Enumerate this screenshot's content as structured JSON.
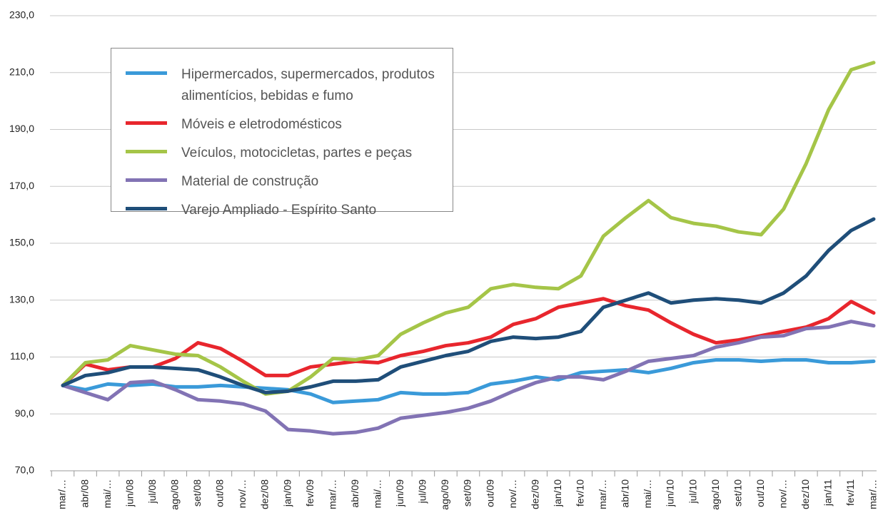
{
  "chart_data": {
    "type": "line",
    "categories": [
      "mar/…",
      "abr/08",
      "mai/…",
      "jun/08",
      "jul/08",
      "ago/08",
      "set/08",
      "out/08",
      "nov/…",
      "dez/08",
      "jan/09",
      "fev/09",
      "mar/…",
      "abr/09",
      "mai/…",
      "jun/09",
      "jul/09",
      "ago/09",
      "set/09",
      "out/09",
      "nov/…",
      "dez/09",
      "jan/10",
      "fev/10",
      "mar/…",
      "abr/10",
      "mai/…",
      "jun/10",
      "jul/10",
      "ago/10",
      "set/10",
      "out/10",
      "nov/…",
      "dez/10",
      "jan/11",
      "fev/11",
      "mar/…"
    ],
    "series": [
      {
        "name": "Hipermercados, supermercados, produtos alimentícios, bebidas e fumo",
        "color": "#3a9ad9",
        "values": [
          100,
          98.5,
          100.5,
          100,
          100.5,
          99.5,
          99.5,
          100,
          99.5,
          99,
          98.5,
          97,
          94,
          94.5,
          95,
          97.5,
          97,
          97,
          97.5,
          100.5,
          101.5,
          103,
          102,
          104.5,
          105,
          105.5,
          104.5,
          106,
          108,
          109,
          109,
          108.5,
          109,
          109,
          108,
          108,
          108.5
        ]
      },
      {
        "name": "Móveis e eletrodomésticos",
        "color": "#e8262d",
        "values": [
          100,
          107.5,
          105.5,
          106.5,
          106.5,
          109.5,
          115,
          113,
          108.5,
          103.5,
          103.5,
          106.5,
          107.5,
          108.5,
          108,
          110.5,
          112,
          114,
          115,
          117,
          121.5,
          123.5,
          127.5,
          129,
          130.5,
          128,
          126.5,
          122,
          118,
          115,
          116,
          117.5,
          119,
          120.5,
          123.5,
          129.5,
          125.5
        ]
      },
      {
        "name": "Veículos, motocicletas, partes e peças",
        "color": "#a5c548",
        "values": [
          100,
          108,
          109,
          114,
          112.5,
          111,
          110.5,
          106.5,
          101.5,
          97,
          98,
          103,
          109.5,
          109,
          110.5,
          118,
          122,
          125.5,
          127.5,
          134,
          135.5,
          134.5,
          134,
          138.5,
          152.5,
          159,
          165,
          159,
          157,
          156,
          154,
          153,
          162,
          178,
          197,
          211,
          213.5
        ]
      },
      {
        "name": "Material de construção",
        "color": "#8273b4",
        "values": [
          100,
          97.5,
          95,
          101,
          101.5,
          98.5,
          95,
          94.5,
          93.5,
          91,
          84.5,
          84,
          83,
          83.5,
          85,
          88.5,
          89.5,
          90.5,
          92,
          94.5,
          98,
          101,
          103,
          103,
          102,
          105,
          108.5,
          109.5,
          110.5,
          113.5,
          115,
          117,
          117.5,
          120,
          120.5,
          122.5,
          121
        ]
      },
      {
        "name": "Varejo Ampliado - Espírito Santo",
        "color": "#1f4e79",
        "values": [
          100,
          103.5,
          104.5,
          106.5,
          106.5,
          106,
          105.5,
          103,
          100,
          97.5,
          98,
          99.5,
          101.5,
          101.5,
          102,
          106.5,
          108.5,
          110.5,
          112,
          115.5,
          117,
          116.5,
          117,
          119,
          127.5,
          130,
          132.5,
          129,
          130,
          130.5,
          130,
          129,
          132.5,
          138.5,
          147.5,
          154.5,
          158.5
        ]
      }
    ],
    "ylim": [
      70,
      230
    ],
    "yticks": [
      {
        "value": 70,
        "label": "70,0"
      },
      {
        "value": 90,
        "label": "90,0"
      },
      {
        "value": 110,
        "label": "110,0"
      },
      {
        "value": 130,
        "label": "130,0"
      },
      {
        "value": 150,
        "label": "150,0"
      },
      {
        "value": 170,
        "label": "170,0"
      },
      {
        "value": 190,
        "label": "190,0"
      },
      {
        "value": 210,
        "label": "210,0"
      },
      {
        "value": 230,
        "label": "230,0"
      }
    ],
    "grid": true
  }
}
